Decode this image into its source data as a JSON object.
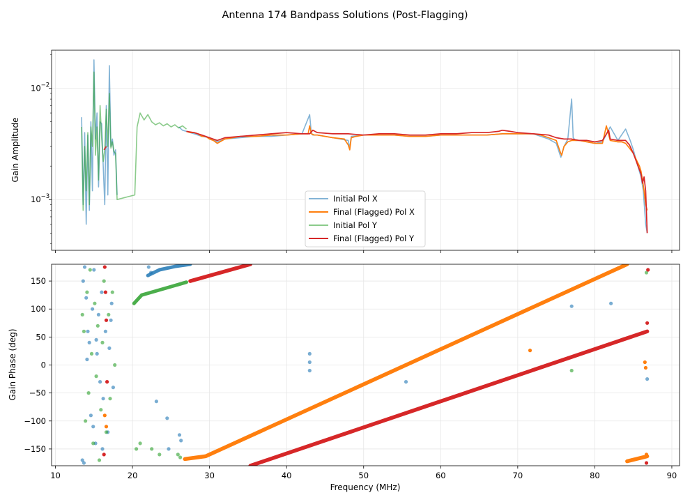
{
  "chart_data": {
    "type": "line",
    "suptitle": "Antenna 174 Bandpass Solutions (Post-Flagging)",
    "xlabel": "Frequency (MHz)",
    "xlim": [
      9.5,
      91
    ],
    "xticks": [
      10,
      20,
      30,
      40,
      50,
      60,
      70,
      80,
      90
    ],
    "xtick_labels": [
      "10",
      "20",
      "30",
      "40",
      "50",
      "60",
      "70",
      "80",
      "90"
    ],
    "colors": {
      "initial_x": "#1f77b4",
      "final_x": "#ff7f0e",
      "initial_y": "#2ca02c",
      "final_y": "#d62728"
    },
    "amplitude": {
      "ylabel": "Gain Amplitude",
      "yscale": "log",
      "ylim": [
        0.00035,
        0.022
      ],
      "ytick_labels": [
        {
          "base": "10",
          "exp": "−3",
          "value": 0.001
        },
        {
          "base": "10",
          "exp": "−2",
          "value": 0.01
        }
      ],
      "legend": [
        "Initial Pol X",
        "Final (Flagged) Pol X",
        "Initial Pol Y",
        "Final (Flagged) Pol Y"
      ],
      "series": [
        {
          "name": "Initial Pol X",
          "key": "initial_x",
          "x": [
            13.4,
            13.6,
            13.8,
            14.0,
            14.2,
            14.4,
            14.6,
            14.8,
            15.0,
            15.2,
            15.4,
            15.6,
            15.8,
            16.0,
            16.2,
            16.4,
            16.6,
            16.8,
            17.0,
            17.2,
            17.4,
            17.6,
            17.8,
            18.0,
            26.0,
            26.5,
            27.0,
            27.5,
            28.0,
            29.0,
            30.0,
            31.0,
            32.0,
            34.0,
            36.0,
            38.0,
            40.0,
            42.0,
            43.0,
            43.2,
            43.4,
            44.0,
            46.0,
            48.0,
            48.2,
            48.4,
            50.0,
            52.0,
            54.0,
            56.0,
            58.0,
            60.0,
            62.0,
            64.0,
            66.0,
            68.0,
            70.0,
            72.0,
            74.0,
            75.0,
            75.6,
            76.0,
            76.5,
            77.0,
            77.2,
            77.5,
            78.0,
            79.0,
            80.0,
            81.0,
            82.0,
            83.0,
            84.0,
            84.6,
            85.0,
            85.5,
            86.0,
            86.3,
            86.6,
            86.8
          ],
          "y": [
            0.0055,
            0.0009,
            0.004,
            0.0006,
            0.0038,
            0.0008,
            0.005,
            0.0012,
            0.018,
            0.0035,
            0.006,
            0.0013,
            0.005,
            0.0048,
            0.002,
            0.0009,
            0.007,
            0.0011,
            0.016,
            0.003,
            0.0035,
            0.0025,
            0.0028,
            0.0011,
            0.0045,
            0.0042,
            0.0041,
            0.004,
            0.0039,
            0.0037,
            0.0036,
            0.0033,
            0.0035,
            0.0036,
            0.0037,
            0.0037,
            0.0038,
            0.0039,
            0.0058,
            0.004,
            0.0038,
            0.0038,
            0.0036,
            0.0034,
            0.0029,
            0.0037,
            0.0038,
            0.0038,
            0.0038,
            0.0037,
            0.0037,
            0.0038,
            0.0038,
            0.0038,
            0.0038,
            0.0039,
            0.0039,
            0.0039,
            0.0035,
            0.0032,
            0.0024,
            0.003,
            0.0035,
            0.008,
            0.0036,
            0.0034,
            0.0034,
            0.0033,
            0.0032,
            0.0033,
            0.0045,
            0.0034,
            0.0043,
            0.0034,
            0.0028,
            0.0021,
            0.0016,
            0.0012,
            0.0006,
            0.0005
          ]
        },
        {
          "name": "Final (Flagged) Pol X",
          "key": "final_x",
          "x": [
            27.0,
            27.5,
            28.0,
            28.5,
            29.0,
            29.5,
            30.0,
            30.5,
            31.0,
            32.0,
            33.0,
            34.0,
            36.0,
            38.0,
            40.0,
            42.0,
            42.8,
            43.0,
            43.2,
            43.6,
            44.0,
            46.0,
            47.5,
            48.0,
            48.2,
            48.4,
            49.0,
            50.0,
            52.0,
            54.0,
            56.0,
            58.0,
            60.0,
            62.0,
            64.0,
            66.0,
            68.0,
            70.0,
            72.0,
            73.0,
            74.0,
            75.0,
            75.5,
            75.7,
            76.0,
            76.5,
            77.0,
            78.0,
            79.0,
            80.0,
            81.0,
            81.5,
            82.0,
            83.0,
            83.5,
            84.0,
            84.5,
            85.0,
            85.5,
            85.8,
            86.0,
            86.2,
            86.4,
            86.6,
            86.8
          ],
          "y": [
            0.0041,
            0.004,
            0.004,
            0.0039,
            0.0037,
            0.0037,
            0.0035,
            0.0034,
            0.0032,
            0.0035,
            0.0036,
            0.0037,
            0.0037,
            0.0038,
            0.0038,
            0.0039,
            0.0039,
            0.0046,
            0.0039,
            0.0038,
            0.0038,
            0.0036,
            0.0035,
            0.0031,
            0.0028,
            0.0036,
            0.0037,
            0.0038,
            0.0038,
            0.0038,
            0.0037,
            0.0037,
            0.0038,
            0.0038,
            0.0038,
            0.0038,
            0.0039,
            0.0039,
            0.0039,
            0.0038,
            0.0036,
            0.0034,
            0.0027,
            0.0025,
            0.003,
            0.0033,
            0.0034,
            0.0034,
            0.0033,
            0.0032,
            0.0032,
            0.0046,
            0.0034,
            0.0033,
            0.0033,
            0.0032,
            0.0029,
            0.0026,
            0.0022,
            0.002,
            0.0018,
            0.0015,
            0.0012,
            0.0009,
            0.0008
          ]
        },
        {
          "name": "Initial Pol Y",
          "key": "initial_y",
          "x": [
            13.4,
            13.6,
            13.8,
            14.0,
            14.2,
            14.4,
            14.6,
            14.8,
            15.0,
            15.2,
            15.4,
            15.6,
            15.8,
            16.0,
            16.2,
            16.4,
            16.6,
            16.8,
            17.0,
            17.2,
            17.4,
            17.6,
            17.8,
            18.0,
            20.3,
            20.6,
            21.0,
            21.5,
            22.0,
            22.5,
            23.0,
            23.5,
            24.0,
            24.5,
            25.0,
            25.5,
            26.0,
            26.5,
            27.0
          ],
          "y": [
            0.0045,
            0.0008,
            0.003,
            0.0012,
            0.004,
            0.0009,
            0.0045,
            0.003,
            0.014,
            0.0025,
            0.0045,
            0.0015,
            0.007,
            0.0035,
            0.0022,
            0.0028,
            0.0065,
            0.003,
            0.009,
            0.0029,
            0.0033,
            0.0027,
            0.0026,
            0.001,
            0.0011,
            0.0045,
            0.006,
            0.0052,
            0.0058,
            0.005,
            0.0047,
            0.0049,
            0.0046,
            0.0048,
            0.0045,
            0.0047,
            0.0044,
            0.0046,
            0.0043
          ]
        },
        {
          "name": "Final (Flagged) Pol Y",
          "key": "final_y",
          "x": [
            16.3,
            16.6,
            27.0,
            28.0,
            29.0,
            30.0,
            31.0,
            32.0,
            34.0,
            36.0,
            38.0,
            40.0,
            42.0,
            43.0,
            43.4,
            44.0,
            46.0,
            48.0,
            50.0,
            52.0,
            54.0,
            56.0,
            58.0,
            60.0,
            62.0,
            64.0,
            66.0,
            67.5,
            68.0,
            69.0,
            70.0,
            72.0,
            74.0,
            75.0,
            76.0,
            77.0,
            78.0,
            79.0,
            80.0,
            81.0,
            81.8,
            82.0,
            83.0,
            84.0,
            84.5,
            85.0,
            85.5,
            86.0,
            86.2,
            86.4,
            86.6,
            86.8
          ],
          "y": [
            0.0028,
            0.003,
            0.0041,
            0.004,
            0.0038,
            0.0036,
            0.0034,
            0.0036,
            0.0037,
            0.0038,
            0.0039,
            0.004,
            0.0039,
            0.0039,
            0.0042,
            0.004,
            0.0039,
            0.0039,
            0.0038,
            0.0039,
            0.0039,
            0.0038,
            0.0038,
            0.0039,
            0.0039,
            0.004,
            0.004,
            0.0041,
            0.0042,
            0.0041,
            0.004,
            0.0039,
            0.0038,
            0.0036,
            0.0035,
            0.0035,
            0.0034,
            0.0034,
            0.0033,
            0.0034,
            0.0042,
            0.0035,
            0.0034,
            0.0034,
            0.0031,
            0.0026,
            0.0021,
            0.0017,
            0.0014,
            0.0016,
            0.0012,
            0.0005
          ]
        }
      ]
    },
    "phase": {
      "ylabel": "Gain Phase (deg)",
      "ylim": [
        -180,
        180
      ],
      "yticks": [
        -150,
        -100,
        -50,
        0,
        50,
        100,
        150
      ],
      "ytick_labels": [
        "−150",
        "−100",
        "−50",
        "0",
        "50",
        "100",
        "150"
      ],
      "segments": [
        {
          "name": "Final (Flagged) Pol X",
          "key": "final_x",
          "x": [
            26.8,
            29.5,
            84.2
          ],
          "y": [
            -168,
            -163,
            180
          ]
        },
        {
          "name": "Final (Flagged) Pol X",
          "key": "final_x",
          "x": [
            84.2,
            86.8
          ],
          "y": [
            -172,
            -163
          ]
        },
        {
          "name": "Final (Flagged) Pol Y",
          "key": "final_y",
          "x": [
            27.5,
            35.3
          ],
          "y": [
            150,
            180
          ]
        },
        {
          "name": "Final (Flagged) Pol Y",
          "key": "final_y",
          "x": [
            35.3,
            86.8
          ],
          "y": [
            -180,
            60
          ]
        },
        {
          "name": "Initial Pol Y",
          "key": "initial_y",
          "x": [
            20.2,
            21.2,
            23.0,
            25.5,
            27.0
          ],
          "y": [
            110,
            125,
            132,
            142,
            148
          ]
        },
        {
          "name": "Initial Pol X",
          "key": "initial_x",
          "x": [
            22.0,
            23.5,
            25.5,
            27.5
          ],
          "y": [
            160,
            170,
            176,
            180
          ]
        }
      ],
      "scatter": [
        {
          "key": "initial_x",
          "x": [
            13.5,
            13.6,
            13.8,
            14.0,
            14.2,
            14.4,
            14.6,
            14.8,
            15.0,
            15.2,
            15.4,
            15.6,
            15.8,
            16.0,
            16.2,
            16.5,
            16.8,
            17.0,
            17.2,
            17.5,
            13.7,
            14.1,
            14.9,
            15.3,
            16.1,
            17.3,
            22.1,
            22.4,
            23.1,
            24.5,
            24.7,
            26.1,
            26.3,
            43.0,
            43.0,
            43.0,
            55.5,
            77.0,
            82.1,
            86.8
          ],
          "y": [
            -170,
            150,
            175,
            120,
            60,
            40,
            -90,
            100,
            170,
            -140,
            20,
            90,
            -30,
            130,
            -60,
            60,
            -120,
            30,
            80,
            -40,
            -175,
            10,
            -110,
            45,
            -150,
            110,
            175,
            165,
            -65,
            -95,
            -150,
            -125,
            -135,
            20,
            5,
            -10,
            -30,
            105,
            110,
            -25
          ]
        },
        {
          "key": "initial_y",
          "x": [
            13.5,
            13.7,
            13.9,
            14.1,
            14.3,
            14.5,
            14.7,
            14.9,
            15.1,
            15.3,
            15.5,
            15.7,
            15.9,
            16.1,
            16.3,
            16.6,
            16.9,
            17.1,
            17.4,
            17.7,
            20.5,
            21.0,
            22.5,
            23.5,
            25.9,
            26.2,
            77.0,
            86.7
          ],
          "y": [
            90,
            60,
            -100,
            130,
            -50,
            170,
            20,
            -140,
            110,
            -20,
            70,
            -170,
            -80,
            40,
            150,
            -120,
            90,
            -60,
            130,
            0,
            -150,
            -140,
            -150,
            -160,
            -160,
            -165,
            -10,
            165
          ]
        },
        {
          "key": "final_x",
          "x": [
            16.4,
            16.6,
            71.6,
            86.5,
            86.6,
            86.7
          ],
          "y": [
            -90,
            -110,
            26,
            5,
            -5,
            -160
          ]
        },
        {
          "key": "final_y",
          "x": [
            16.4,
            16.5,
            16.6,
            16.7,
            16.3,
            86.8,
            86.7,
            86.9
          ],
          "y": [
            175,
            130,
            80,
            -30,
            -160,
            75,
            -175,
            170
          ]
        }
      ]
    }
  }
}
